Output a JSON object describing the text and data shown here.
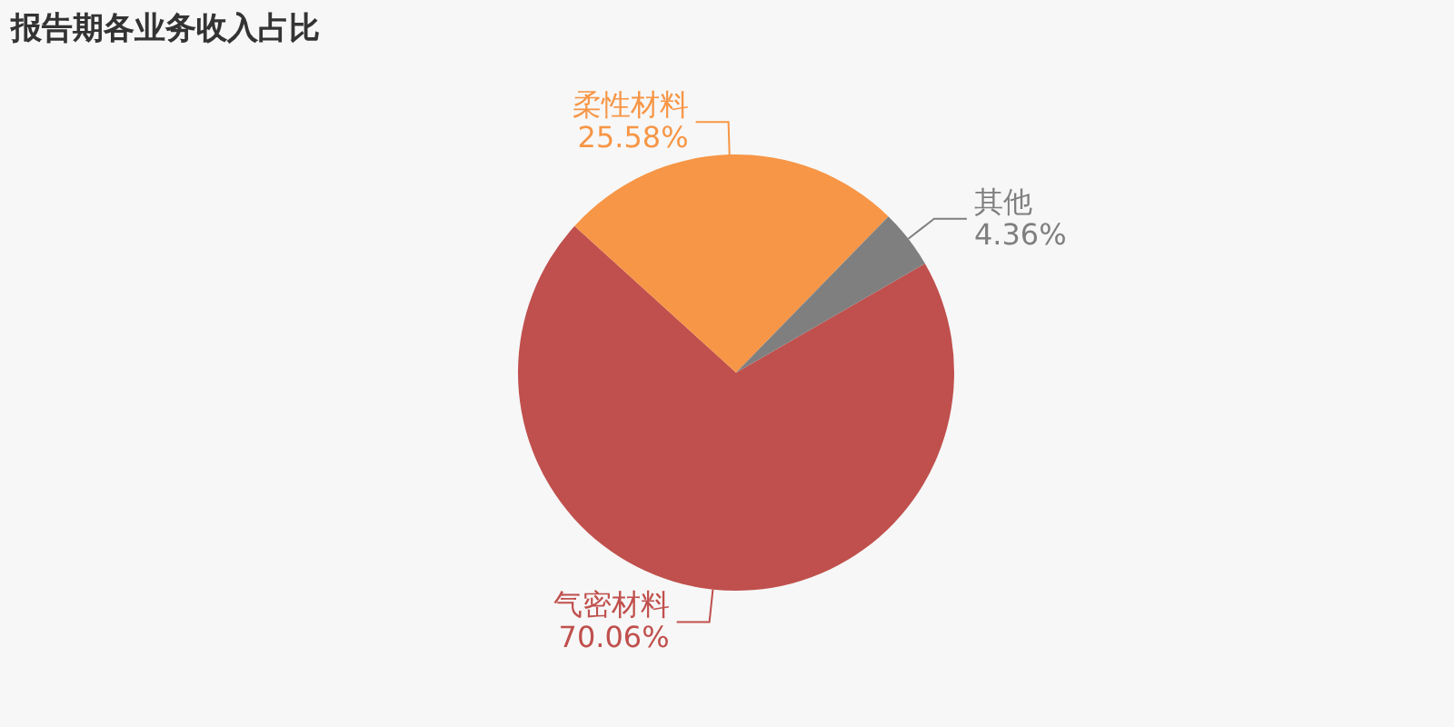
{
  "chart_data": {
    "type": "pie",
    "title": "报告期各业务收入占比",
    "categories": [
      "气密材料",
      "柔性材料",
      "其他"
    ],
    "values": [
      70.06,
      25.58,
      4.36
    ],
    "colors": [
      "#c0504d",
      "#f79646",
      "#7f7f7f"
    ],
    "value_labels": [
      "70.06%",
      "25.58%",
      "4.36%"
    ],
    "legend": false
  }
}
